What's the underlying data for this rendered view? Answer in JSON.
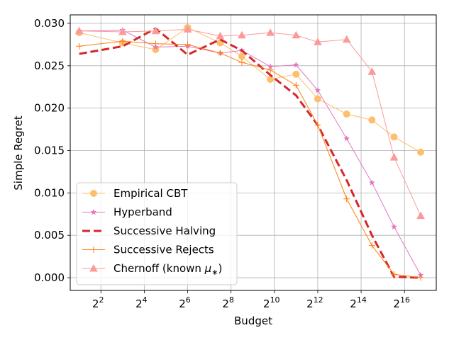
{
  "chart_data": {
    "type": "line",
    "xlabel": "Budget",
    "ylabel": "Simple Regret",
    "x_scale": "log2",
    "xlim": [
      1.5,
      181000
    ],
    "ylim": [
      -0.0015,
      0.031
    ],
    "x_ticks": [
      4,
      16,
      64,
      256,
      1024,
      4096,
      16384,
      65536
    ],
    "x_tick_labels": [
      {
        "base": "2",
        "exp": "2"
      },
      {
        "base": "2",
        "exp": "4"
      },
      {
        "base": "2",
        "exp": "6"
      },
      {
        "base": "2",
        "exp": "8"
      },
      {
        "base": "2",
        "exp": "10"
      },
      {
        "base": "2",
        "exp": "12"
      },
      {
        "base": "2",
        "exp": "14"
      },
      {
        "base": "2",
        "exp": "16"
      }
    ],
    "y_ticks": [
      0.0,
      0.005,
      0.01,
      0.015,
      0.02,
      0.025,
      0.03
    ],
    "y_tick_labels": [
      "0.000",
      "0.005",
      "0.010",
      "0.015",
      "0.020",
      "0.025",
      "0.030"
    ],
    "grid": true,
    "legend_position": "lower-left",
    "series": [
      {
        "name": "Empirical CBT",
        "color": "#fdbf6f",
        "marker": "circle",
        "line_width": 1,
        "x": [
          2,
          8,
          23,
          64,
          181,
          362,
          900,
          2048,
          4096,
          10321,
          23170,
          47000,
          110000
        ],
        "y": [
          0.0289,
          0.0277,
          0.0269,
          0.0295,
          0.0277,
          0.0261,
          0.0234,
          0.024,
          0.0211,
          0.0193,
          0.0186,
          0.0166,
          0.0148
        ]
      },
      {
        "name": "Hyperband",
        "color": "#e377c2",
        "marker": "star",
        "line_width": 1,
        "x": [
          2,
          8,
          23,
          64,
          181,
          362,
          900,
          2048,
          4096,
          10321,
          23170,
          47000,
          110000
        ],
        "y": [
          0.0291,
          0.0292,
          0.0272,
          0.0273,
          0.0265,
          0.0268,
          0.0249,
          0.0251,
          0.0221,
          0.0164,
          0.0112,
          0.006,
          0.0003
        ]
      },
      {
        "name": "Successive Halving",
        "color": "#d62728",
        "marker": "none",
        "dashed": true,
        "line_width": 3,
        "x": [
          2,
          8,
          23,
          64,
          181,
          362,
          900,
          2048,
          4096,
          10321,
          23170,
          47000,
          110000
        ],
        "y": [
          0.0264,
          0.0273,
          0.0294,
          0.0263,
          0.0281,
          0.0268,
          0.0239,
          0.0215,
          0.018,
          0.0115,
          0.005,
          0.0001,
          0.0
        ]
      },
      {
        "name": "Successive Rejects",
        "color": "#ff7f0e",
        "marker": "plus",
        "line_width": 1,
        "x": [
          2,
          8,
          23,
          64,
          181,
          362,
          900,
          2048,
          4096,
          10321,
          23170,
          47000,
          110000
        ],
        "y": [
          0.0273,
          0.0279,
          0.0276,
          0.0275,
          0.0265,
          0.0254,
          0.0245,
          0.0227,
          0.018,
          0.0093,
          0.0038,
          0.0004,
          0.0
        ]
      },
      {
        "name": "Chernoff (known μ∗)",
        "name_main": "Chernoff (known ",
        "name_symbol": "μ",
        "name_sub": "∗",
        "name_tail": ")",
        "color": "#fb9a99",
        "marker": "triangle",
        "line_width": 1,
        "x": [
          2,
          8,
          23,
          64,
          181,
          362,
          900,
          2048,
          4096,
          10321,
          23170,
          47000,
          110000
        ],
        "y": [
          0.0291,
          0.029,
          0.0291,
          0.0293,
          0.0285,
          0.0286,
          0.0289,
          0.0286,
          0.0278,
          0.0281,
          0.0243,
          0.0142,
          0.0073
        ]
      }
    ]
  }
}
